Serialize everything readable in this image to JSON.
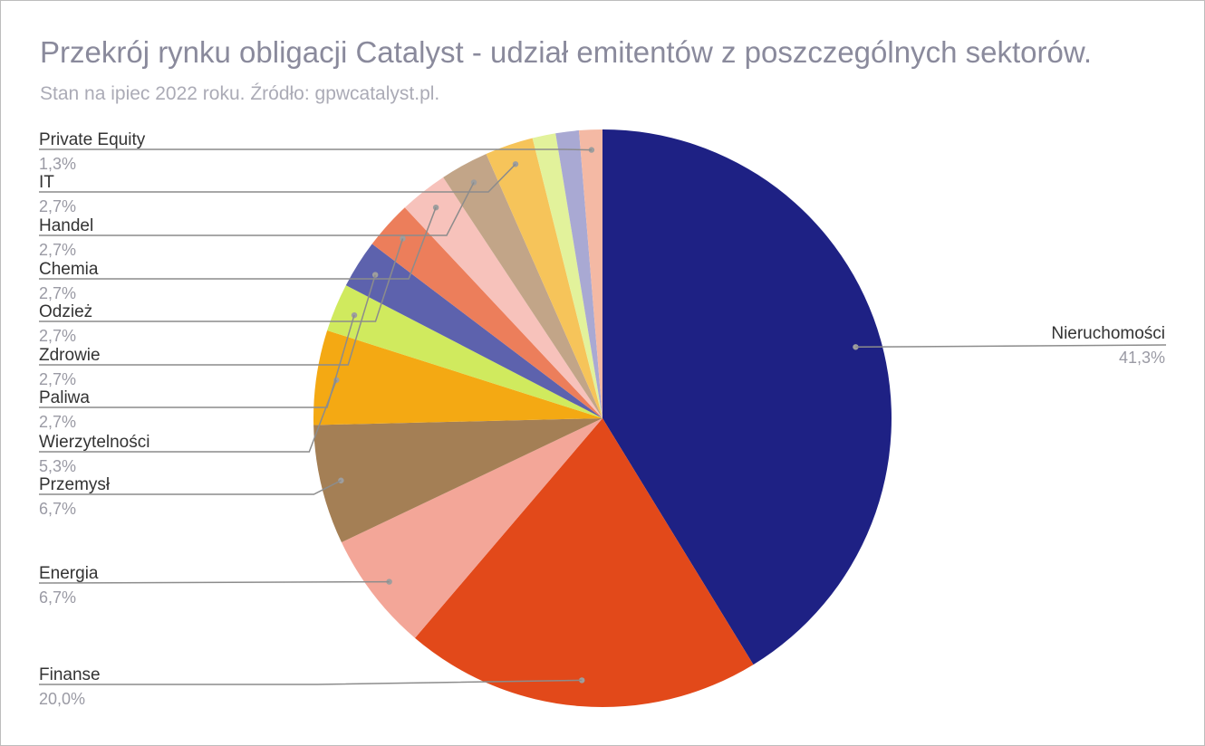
{
  "chart_data": {
    "type": "pie",
    "title": "Przekrój rynku obligacji Catalyst - udział emitentów z poszczególnych sektorów.",
    "subtitle": "Stan na ipiec 2022 roku. Źródło: gpwcatalyst.pl.",
    "legend": "none",
    "slices": [
      {
        "label": "Nieruchomości",
        "value": 41.3,
        "display": "41,3%",
        "color": "#1e2184"
      },
      {
        "label": "Finanse",
        "value": 20.0,
        "display": "20,0%",
        "color": "#e2491a"
      },
      {
        "label": "Energia",
        "value": 6.7,
        "display": "6,7%",
        "color": "#f3a698"
      },
      {
        "label": "Przemysł",
        "value": 6.7,
        "display": "6,7%",
        "color": "#a47f55"
      },
      {
        "label": "Wierzytelności",
        "value": 5.3,
        "display": "5,3%",
        "color": "#f4a913"
      },
      {
        "label": "Paliwa",
        "value": 2.7,
        "display": "2,7%",
        "color": "#d0ea5e"
      },
      {
        "label": "Zdrowie",
        "value": 2.7,
        "display": "2,7%",
        "color": "#5d62ad"
      },
      {
        "label": "Odzież",
        "value": 2.7,
        "display": "2,7%",
        "color": "#ec7e5b"
      },
      {
        "label": "Chemia",
        "value": 2.7,
        "display": "2,7%",
        "color": "#f7c2bb"
      },
      {
        "label": "Handel",
        "value": 2.7,
        "display": "2,7%",
        "color": "#c2a588"
      },
      {
        "label": "IT",
        "value": 2.7,
        "display": "2,7%",
        "color": "#f6c45a"
      },
      {
        "label": "—",
        "value": 1.3,
        "display": "",
        "color": "#e2f29b"
      },
      {
        "label": "—",
        "value": 1.3,
        "display": "",
        "color": "#a9a9d3"
      },
      {
        "label": "Private Equity",
        "value": 1.3,
        "display": "1,3%",
        "color": "#f4b9a4"
      }
    ]
  }
}
